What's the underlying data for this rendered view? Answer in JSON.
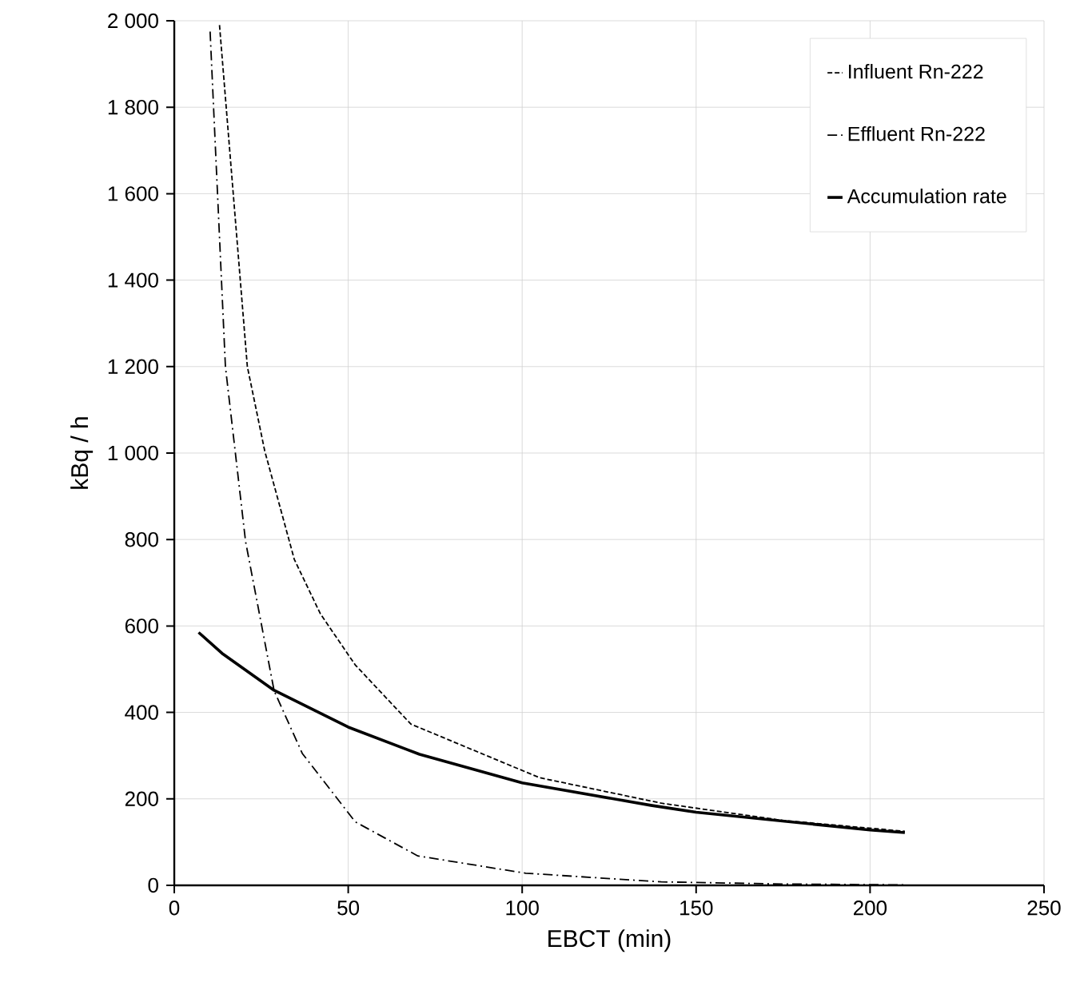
{
  "chart_data": {
    "type": "line",
    "xlabel": "EBCT (min)",
    "ylabel": "kBq / h",
    "xlim": [
      0,
      250
    ],
    "ylim": [
      0,
      2000
    ],
    "xticks": [
      0,
      50,
      100,
      150,
      200,
      250
    ],
    "yticks": [
      0,
      200,
      400,
      600,
      800,
      {
        "value": 1000,
        "label": "1 000"
      },
      {
        "value": 1200,
        "label": "1 200"
      },
      {
        "value": 1400,
        "label": "1 400"
      },
      {
        "value": 1600,
        "label": "1 600"
      },
      {
        "value": 1800,
        "label": "1 800"
      },
      {
        "value": 2000,
        "label": "2 000"
      }
    ],
    "grid": true,
    "legend": "top right",
    "marker": "none",
    "series": [
      {
        "name": "Influent Rn-222",
        "color": "#000000",
        "line_style": "dashed",
        "x": [
          13,
          21,
          26,
          34.5,
          42,
          52,
          68,
          105,
          140,
          175,
          210
        ],
        "values": [
          1990,
          1200,
          1005,
          754,
          628,
          510,
          373,
          249,
          190,
          150,
          125
        ]
      },
      {
        "name": "Effluent Rn-222",
        "color": "#000000",
        "line_style": "dashdotted",
        "x": [
          10.3,
          14.7,
          20.5,
          28.7,
          36.8,
          52,
          70,
          101,
          140,
          175,
          210
        ],
        "values": [
          1975,
          1200,
          795,
          450,
          305,
          147,
          68,
          28,
          8,
          3,
          1
        ]
      },
      {
        "name": "Accumulation rate",
        "color": "#000000",
        "line_style": "solid",
        "x": [
          7,
          14,
          28.7,
          50,
          70.5,
          100,
          137,
          150,
          200,
          210
        ],
        "values": [
          585,
          535,
          451,
          366,
          303,
          237,
          185,
          169,
          128,
          122
        ]
      }
    ]
  }
}
